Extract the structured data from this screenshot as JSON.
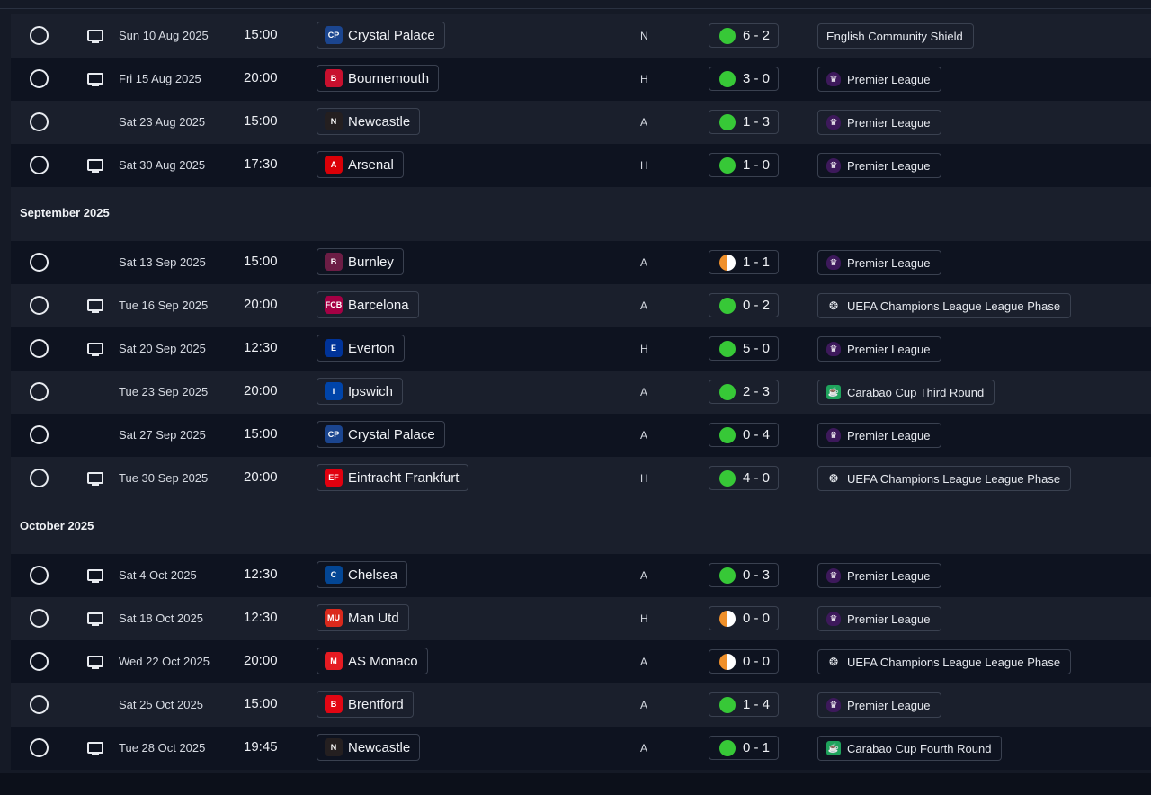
{
  "fixtures": [
    {
      "date": "Sun 10 Aug 2025",
      "time": "15:00",
      "team": "Crystal Palace",
      "badge": "CP",
      "badge_color": "#1b458f",
      "venue": "N",
      "score": "6 - 2",
      "result": "win",
      "competition": "English Community Shield",
      "comp_type": "none",
      "tv": true
    },
    {
      "date": "Fri 15 Aug 2025",
      "time": "20:00",
      "team": "Bournemouth",
      "badge": "B",
      "badge_color": "#c8102e",
      "venue": "H",
      "score": "3 - 0",
      "result": "win",
      "competition": "Premier League",
      "comp_type": "pl",
      "tv": true
    },
    {
      "date": "Sat 23 Aug 2025",
      "time": "15:00",
      "team": "Newcastle",
      "badge": "N",
      "badge_color": "#241f20",
      "venue": "A",
      "score": "1 - 3",
      "result": "win",
      "competition": "Premier League",
      "comp_type": "pl",
      "tv": false
    },
    {
      "date": "Sat 30 Aug 2025",
      "time": "17:30",
      "team": "Arsenal",
      "badge": "A",
      "badge_color": "#db0007",
      "venue": "H",
      "score": "1 - 0",
      "result": "win",
      "competition": "Premier League",
      "comp_type": "pl",
      "tv": true
    },
    {
      "month": "September 2025"
    },
    {
      "date": "Sat 13 Sep 2025",
      "time": "15:00",
      "team": "Burnley",
      "badge": "B",
      "badge_color": "#6c1d45",
      "venue": "A",
      "score": "1 - 1",
      "result": "draw",
      "competition": "Premier League",
      "comp_type": "pl",
      "tv": false
    },
    {
      "date": "Tue 16 Sep 2025",
      "time": "20:00",
      "team": "Barcelona",
      "badge": "FCB",
      "badge_color": "#a50044",
      "venue": "A",
      "score": "0 - 2",
      "result": "win",
      "competition": "UEFA Champions League League Phase",
      "comp_type": "ucl",
      "tv": true
    },
    {
      "date": "Sat 20 Sep 2025",
      "time": "12:30",
      "team": "Everton",
      "badge": "E",
      "badge_color": "#003399",
      "venue": "H",
      "score": "5 - 0",
      "result": "win",
      "competition": "Premier League",
      "comp_type": "pl",
      "tv": true
    },
    {
      "date": "Tue 23 Sep 2025",
      "time": "20:00",
      "team": "Ipswich",
      "badge": "I",
      "badge_color": "#0044a9",
      "venue": "A",
      "score": "2 - 3",
      "result": "win",
      "competition": "Carabao Cup Third Round",
      "comp_type": "cup",
      "tv": false
    },
    {
      "date": "Sat 27 Sep 2025",
      "time": "15:00",
      "team": "Crystal Palace",
      "badge": "CP",
      "badge_color": "#1b458f",
      "venue": "A",
      "score": "0 - 4",
      "result": "win",
      "competition": "Premier League",
      "comp_type": "pl",
      "tv": false
    },
    {
      "date": "Tue 30 Sep 2025",
      "time": "20:00",
      "team": "Eintracht Frankfurt",
      "badge": "EF",
      "badge_color": "#e1000f",
      "venue": "H",
      "score": "4 - 0",
      "result": "win",
      "competition": "UEFA Champions League League Phase",
      "comp_type": "ucl",
      "tv": true
    },
    {
      "month": "October 2025"
    },
    {
      "date": "Sat 4 Oct 2025",
      "time": "12:30",
      "team": "Chelsea",
      "badge": "C",
      "badge_color": "#034694",
      "venue": "A",
      "score": "0 - 3",
      "result": "win",
      "competition": "Premier League",
      "comp_type": "pl",
      "tv": true
    },
    {
      "date": "Sat 18 Oct 2025",
      "time": "12:30",
      "team": "Man Utd",
      "badge": "MU",
      "badge_color": "#da291c",
      "venue": "H",
      "score": "0 - 0",
      "result": "draw",
      "competition": "Premier League",
      "comp_type": "pl",
      "tv": true
    },
    {
      "date": "Wed 22 Oct 2025",
      "time": "20:00",
      "team": "AS Monaco",
      "badge": "M",
      "badge_color": "#e51b22",
      "venue": "A",
      "score": "0 - 0",
      "result": "draw",
      "competition": "UEFA Champions League League Phase",
      "comp_type": "ucl",
      "tv": true
    },
    {
      "date": "Sat 25 Oct 2025",
      "time": "15:00",
      "team": "Brentford",
      "badge": "B",
      "badge_color": "#e30613",
      "venue": "A",
      "score": "1 - 4",
      "result": "win",
      "competition": "Premier League",
      "comp_type": "pl",
      "tv": false
    },
    {
      "date": "Tue 28 Oct 2025",
      "time": "19:45",
      "team": "Newcastle",
      "badge": "N",
      "badge_color": "#241f20",
      "venue": "A",
      "score": "0 - 1",
      "result": "win",
      "competition": "Carabao Cup Fourth Round",
      "comp_type": "cup",
      "tv": true
    }
  ]
}
